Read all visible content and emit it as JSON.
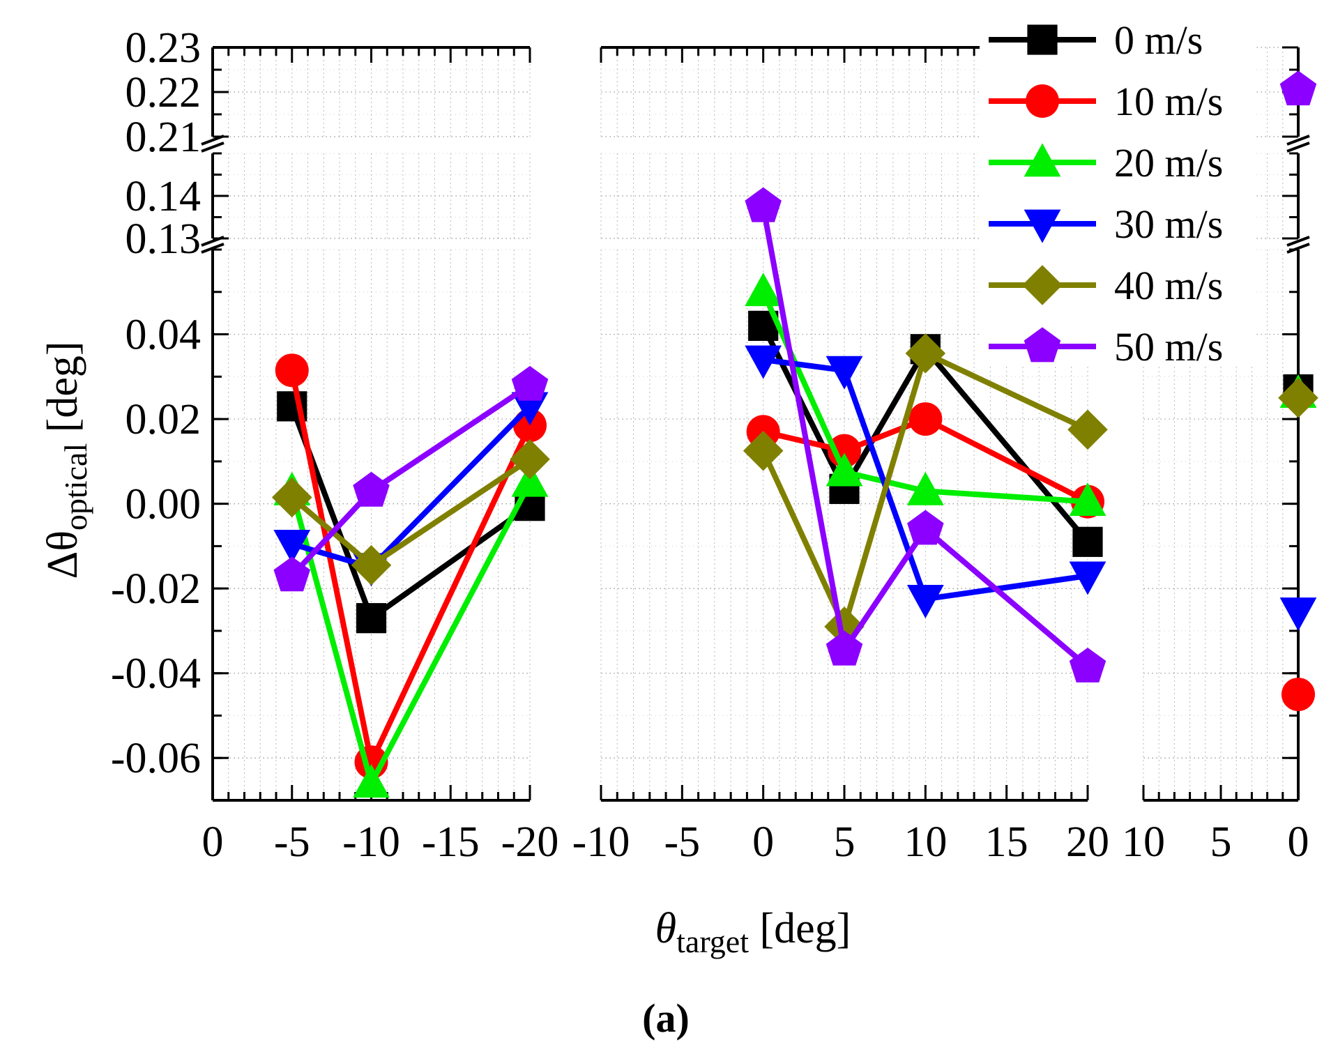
{
  "caption": "(a)",
  "y_axis_title": {
    "symbol": "Δθ",
    "sub": "optical",
    "unit": "[deg]"
  },
  "x_axis_title": {
    "symbol": "θ",
    "sub": "target",
    "unit": "[deg]"
  },
  "chart_data": {
    "type": "line",
    "title": "",
    "ylabel": "Δθ_optical [deg]",
    "xlabel": "θ_target [deg]",
    "y_segments": [
      {
        "range": [
          -0.07,
          0.06
        ],
        "ticks": [
          "-0.06",
          "-0.04",
          "-0.02",
          "0.00",
          "0.02",
          "0.04"
        ]
      },
      {
        "range": [
          0.13,
          0.15
        ],
        "ticks": [
          "0.13",
          "0.14"
        ]
      },
      {
        "range": [
          0.21,
          0.23
        ],
        "ticks": [
          "0.21",
          "0.22",
          "0.23"
        ]
      }
    ],
    "panels": [
      {
        "name": "left",
        "xlim": [
          0,
          -20
        ],
        "x_ticks": [
          "0",
          "-5",
          "-10",
          "-15",
          "-20"
        ]
      },
      {
        "name": "middle",
        "xlim": [
          -10,
          20
        ],
        "x_ticks": [
          "-10",
          "-5",
          "0",
          "5",
          "10",
          "15",
          "20"
        ]
      },
      {
        "name": "right",
        "xlim": [
          10,
          0
        ],
        "x_ticks": [
          "10",
          "5",
          "0"
        ]
      }
    ],
    "series": [
      {
        "name": "0 m/s",
        "color": "#000000",
        "marker": "square",
        "left": [
          [
            -5,
            0.023
          ],
          [
            -10,
            -0.027
          ],
          [
            -20,
            -0.0005
          ]
        ],
        "middle": [
          [
            0,
            0.042
          ],
          [
            5,
            0.0035
          ],
          [
            10,
            0.0365
          ],
          [
            20,
            -0.009
          ]
        ],
        "right": [
          [
            0,
            0.027
          ]
        ]
      },
      {
        "name": "10 m/s",
        "color": "#ff0000",
        "marker": "circle",
        "left": [
          [
            -5,
            0.0315
          ],
          [
            -10,
            -0.061
          ],
          [
            -20,
            0.0185
          ]
        ],
        "middle": [
          [
            0,
            0.017
          ],
          [
            5,
            0.0125
          ],
          [
            10,
            0.02
          ],
          [
            20,
            0.0005
          ]
        ],
        "right": [
          [
            0,
            -0.045
          ]
        ]
      },
      {
        "name": "20 m/s",
        "color": "#00ee00",
        "marker": "triangle-up",
        "left": [
          [
            -5,
            0.003
          ],
          [
            -10,
            -0.066
          ],
          [
            -20,
            0.005
          ]
        ],
        "middle": [
          [
            0,
            0.05
          ],
          [
            5,
            0.0075
          ],
          [
            10,
            0.003
          ],
          [
            20,
            0.0005
          ]
        ],
        "right": [
          [
            0,
            0.026
          ]
        ]
      },
      {
        "name": "30 m/s",
        "color": "#0000ff",
        "marker": "triangle-down",
        "left": [
          [
            -5,
            -0.0095
          ],
          [
            -10,
            -0.015
          ],
          [
            -20,
            0.023
          ]
        ],
        "middle": [
          [
            0,
            0.034
          ],
          [
            5,
            0.0315
          ],
          [
            10,
            -0.0225
          ],
          [
            20,
            -0.017
          ]
        ],
        "right": [
          [
            0,
            -0.0255
          ]
        ]
      },
      {
        "name": "40 m/s",
        "color": "#808000",
        "marker": "diamond",
        "left": [
          [
            -5,
            0.0015
          ],
          [
            -10,
            -0.0145
          ],
          [
            -20,
            0.0105
          ]
        ],
        "middle": [
          [
            0,
            0.0125
          ],
          [
            5,
            -0.029
          ],
          [
            10,
            0.0355
          ],
          [
            20,
            0.0175
          ]
        ],
        "right": [
          [
            0,
            0.025
          ]
        ]
      },
      {
        "name": "50 m/s",
        "color": "#8b00ff",
        "marker": "pentagon",
        "left": [
          [
            -5,
            -0.017
          ],
          [
            -10,
            0.003
          ],
          [
            -20,
            0.028
          ]
        ],
        "middle": [
          [
            0,
            0.1375
          ],
          [
            5,
            -0.0345
          ],
          [
            10,
            -0.006
          ],
          [
            20,
            -0.0385
          ]
        ],
        "right": [
          [
            0,
            0.2205
          ]
        ]
      }
    ],
    "legend_position": "top-right",
    "grid": true
  }
}
